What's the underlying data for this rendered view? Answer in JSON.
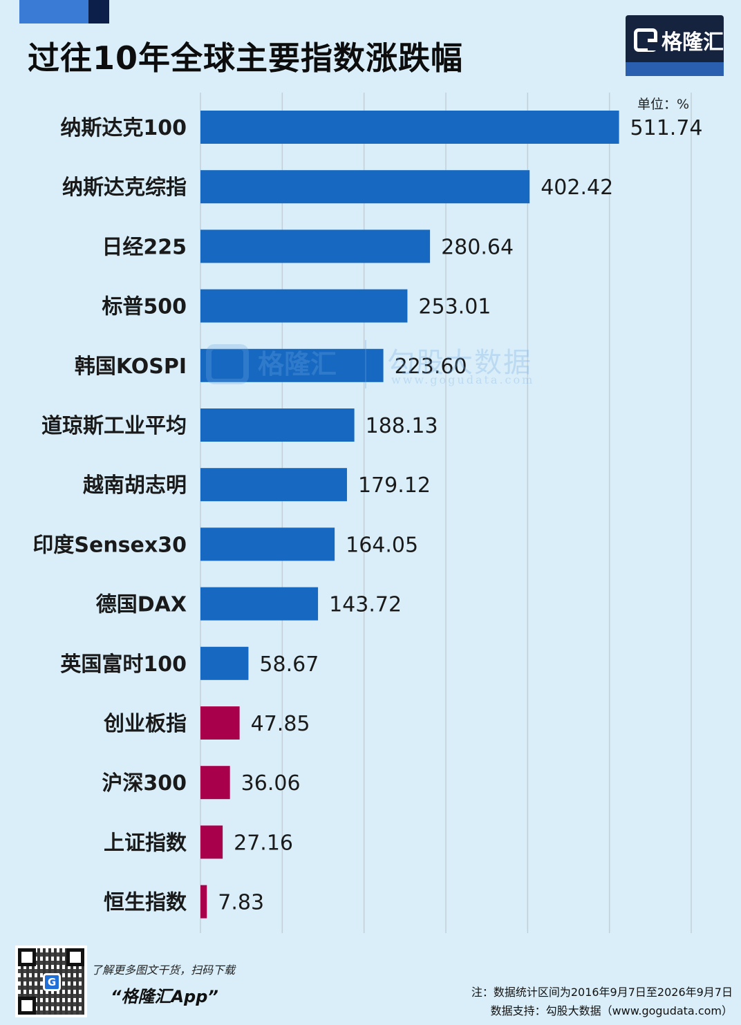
{
  "title": "过往10年全球主要指数涨跌幅",
  "brand": {
    "name": "格隆汇",
    "logo_icon": "g-logo-icon"
  },
  "unit_label": "单位：%",
  "watermark": {
    "brand": "格隆汇",
    "name": "勾股大数据",
    "url": "www.gogudata.com"
  },
  "colors": {
    "positive": "#1668c0",
    "negative": "#a8004a",
    "background": "#d9eef8",
    "grid": "#c3cfd8"
  },
  "chart_data": {
    "type": "bar",
    "orientation": "horizontal",
    "title": "过往10年全球主要指数涨跌幅",
    "unit": "%",
    "categories": [
      "纳斯达克100",
      "纳斯达克综指",
      "日经225",
      "标普500",
      "韩国KOSPI",
      "道琼斯工业平均",
      "越南胡志明",
      "印度Sensex30",
      "德国DAX",
      "英国富时100",
      "创业板指",
      "沪深300",
      "上证指数",
      "恒生指数"
    ],
    "values": [
      511.74,
      402.42,
      280.64,
      253.01,
      223.6,
      188.13,
      179.12,
      164.05,
      143.72,
      58.67,
      47.85,
      36.06,
      27.16,
      7.83
    ],
    "value_labels": [
      "511.74",
      "402.42",
      "280.64",
      "253.01",
      "223.60",
      "188.13",
      "179.12",
      "164.05",
      "143.72",
      "58.67",
      "47.85",
      "36.06",
      "27.16",
      "7.83"
    ],
    "bar_colors": [
      "#1668c0",
      "#1668c0",
      "#1668c0",
      "#1668c0",
      "#1668c0",
      "#1668c0",
      "#1668c0",
      "#1668c0",
      "#1668c0",
      "#1668c0",
      "#a8004a",
      "#a8004a",
      "#a8004a",
      "#a8004a"
    ],
    "xlim": [
      0,
      600
    ],
    "grid": true,
    "grid_step": 100
  },
  "footer": {
    "promo_text": "了解更多图文干货，扫码下载",
    "app_name": "“格隆汇App”",
    "note": "注：数据统计区间为2016年9月7日至2026年9月7日",
    "source": "数据支持：勾股大数据（www.gogudata.com）"
  }
}
